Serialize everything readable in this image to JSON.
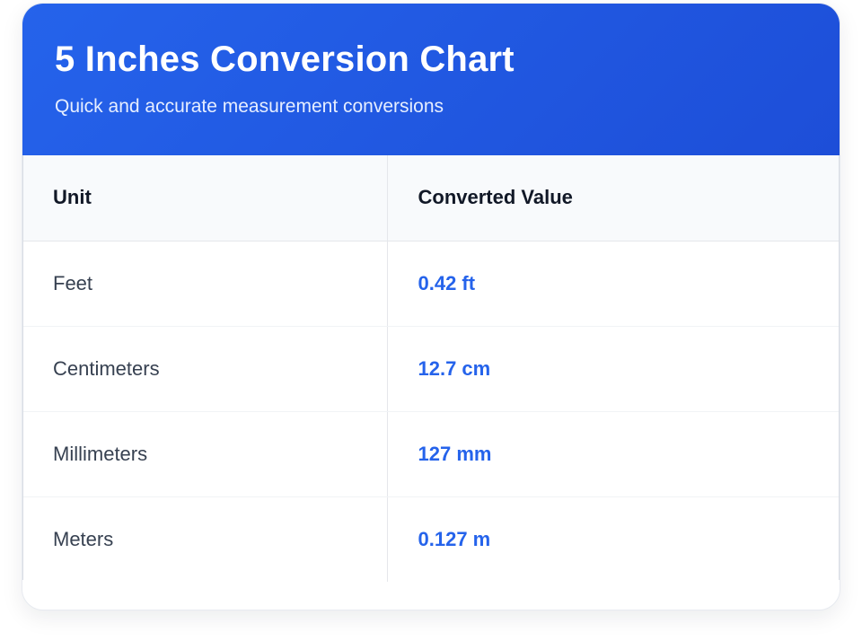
{
  "header": {
    "title": "5 Inches Conversion Chart",
    "subtitle": "Quick and accurate measurement conversions"
  },
  "table": {
    "columns": [
      "Unit",
      "Converted Value"
    ],
    "rows": [
      {
        "unit": "Feet",
        "value": "0.42 ft"
      },
      {
        "unit": "Centimeters",
        "value": "12.7 cm"
      },
      {
        "unit": "Millimeters",
        "value": "127 mm"
      },
      {
        "unit": "Meters",
        "value": "0.127 m"
      }
    ]
  },
  "colors": {
    "accent": "#2563eb",
    "header_gradient_end": "#1d4ed8",
    "header_row_bg": "#f8fafc",
    "unit_text": "#374151",
    "heading_text": "#111827"
  }
}
